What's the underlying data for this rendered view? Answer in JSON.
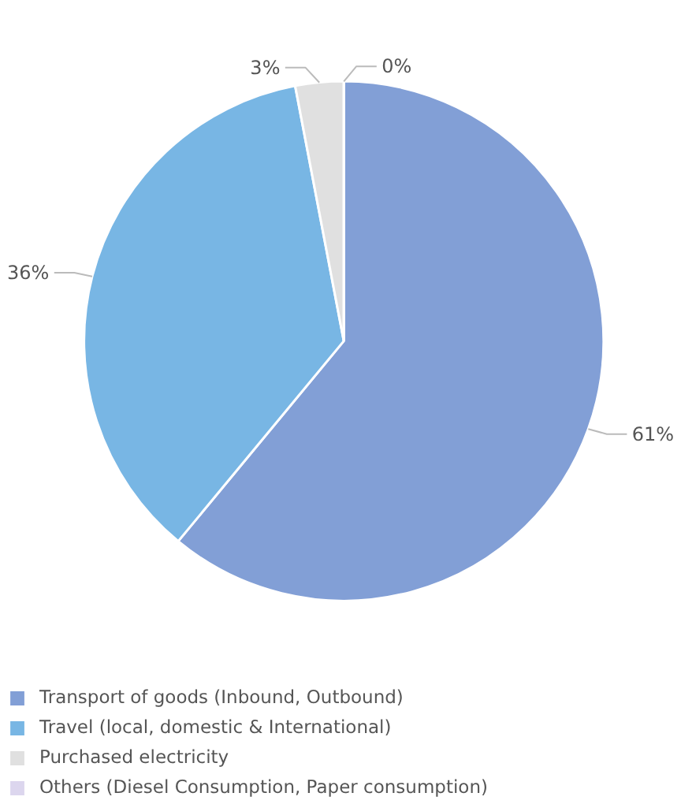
{
  "chart_data": {
    "type": "pie",
    "categories": [
      "Transport of goods (Inbound, Outbound)",
      "Travel (local, domestic & International)",
      "Purchased electricity",
      "Others (Diesel Consumption, Paper consumption)"
    ],
    "values": [
      61,
      36,
      3,
      0
    ],
    "value_labels": [
      "61%",
      "36%",
      "3%",
      "0%"
    ],
    "colors": [
      "#829fd6",
      "#78b6e4",
      "#e0e0e0",
      "#dcd6ee"
    ],
    "legend": "bottom"
  }
}
